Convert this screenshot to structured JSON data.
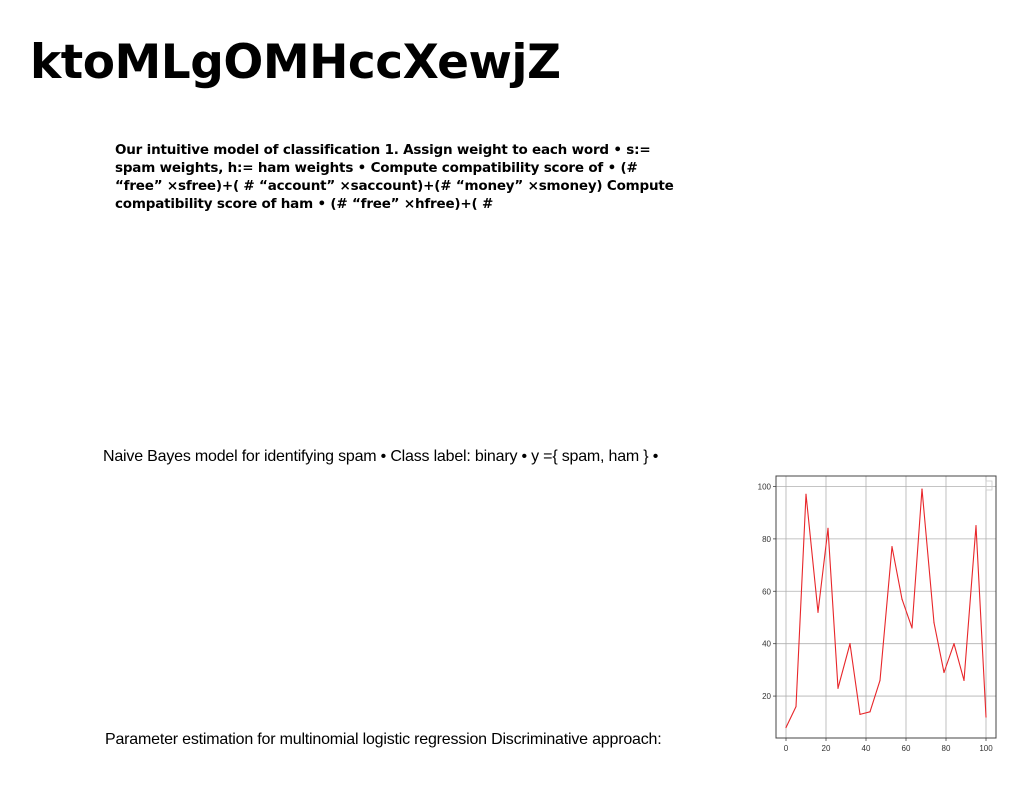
{
  "slide": {
    "title": "ktoMLgOMHccXewjZ",
    "bold_paragraph": "Our intuitive model of classification 1. Assign weight to each word • s:= spam weights, h:= ham weights • Compute compatibility score of • (# “free” ×sfree)+( # “account” ×saccount)+(# “money” ×smoney) Compute compatibility score of ham • (# “free” ×hfree)+( #",
    "line_1": "Naive Bayes model for identifying spam • Class label: binary • y ={ spam, ham } •",
    "line_2": "Parameter estimation for multinomial logistic regression Discriminative approach:"
  },
  "chart_data": {
    "type": "line",
    "title": "",
    "xlabel": "",
    "ylabel": "",
    "xlim": [
      -5,
      105
    ],
    "ylim": [
      4,
      104
    ],
    "xticks": [
      0,
      20,
      40,
      60,
      80,
      100
    ],
    "yticks": [
      20,
      40,
      60,
      80,
      100
    ],
    "grid": true,
    "line_color": "#e8262a",
    "series": [
      {
        "x": [
          0,
          5,
          10,
          16,
          21,
          26,
          32,
          37,
          42,
          47,
          53,
          58,
          63,
          68,
          74,
          79,
          84,
          89,
          95,
          100
        ],
        "values": [
          8,
          16,
          97,
          52,
          84,
          23,
          40,
          13,
          14,
          26,
          77,
          57,
          46,
          99,
          48,
          29,
          40,
          26,
          85,
          12
        ]
      }
    ]
  }
}
